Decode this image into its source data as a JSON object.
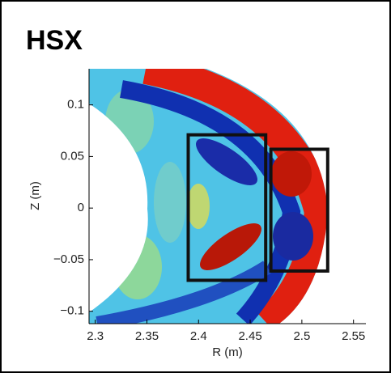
{
  "chart_data": {
    "type": "heatmap",
    "title": "HSX",
    "xlabel": "R (m)",
    "ylabel": "Z (m)",
    "xlim": [
      2.294,
      2.562
    ],
    "ylim": [
      -0.112,
      0.135
    ],
    "xticks": [
      2.3,
      2.35,
      2.4,
      2.45,
      2.5,
      2.55
    ],
    "yticks": [
      {
        "value": -0.1,
        "label": "−0.1"
      },
      {
        "value": -0.05,
        "label": "−0.05"
      },
      0,
      0.05,
      0.1
    ],
    "boxes": [
      {
        "r": [
          2.39,
          2.465
        ],
        "z": [
          -0.07,
          0.071
        ]
      },
      {
        "r": [
          2.47,
          2.525
        ],
        "z": [
          -0.061,
          0.057
        ]
      }
    ],
    "box_color": "#111111"
  }
}
